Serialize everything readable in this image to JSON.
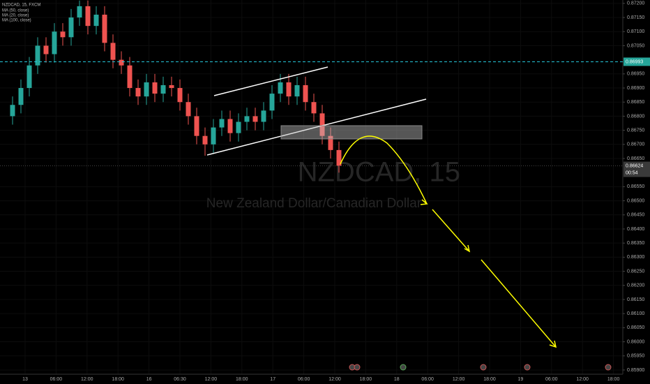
{
  "chart_data": {
    "type": "candlestick",
    "header": "NZDCAD, 15, FXCM",
    "indicators": [
      "MA (50, close)",
      "MA (20, close)",
      "MA (100, close)"
    ],
    "watermark": "NZDCAD, 15",
    "watermark_subtitle": "New Zealand Dollar/Canadian Dollar",
    "up_color": "#26a69a",
    "down_color": "#ef5350",
    "open": [
      0.868,
      0.8684,
      0.869,
      0.8698,
      0.8705,
      0.8702,
      0.871,
      0.8708,
      0.8715,
      0.8719,
      0.8712,
      0.8716,
      0.8706,
      0.87,
      0.8698,
      0.869,
      0.8687,
      0.8692,
      0.8688,
      0.8691,
      0.869,
      0.8685,
      0.868,
      0.8673,
      0.867,
      0.8676,
      0.8679,
      0.8674,
      0.8678,
      0.868,
      0.8678,
      0.8682,
      0.8688,
      0.8692,
      0.8687,
      0.8691,
      0.8685,
      0.8681,
      0.8673,
      0.8668
    ],
    "high": [
      0.8687,
      0.8693,
      0.8701,
      0.8708,
      0.8708,
      0.8713,
      0.8713,
      0.8718,
      0.8721,
      0.8721,
      0.8719,
      0.8719,
      0.8709,
      0.8703,
      0.8701,
      0.8693,
      0.8695,
      0.8695,
      0.8694,
      0.8694,
      0.8693,
      0.8688,
      0.8683,
      0.8676,
      0.8679,
      0.8682,
      0.8682,
      0.8681,
      0.8683,
      0.8683,
      0.8685,
      0.8691,
      0.8695,
      0.8695,
      0.8694,
      0.8694,
      0.8688,
      0.8684,
      0.8676,
      0.8671
    ],
    "low": [
      0.8677,
      0.8681,
      0.8687,
      0.8695,
      0.8699,
      0.8699,
      0.8705,
      0.8705,
      0.8712,
      0.8709,
      0.8709,
      0.8703,
      0.8697,
      0.8695,
      0.8687,
      0.8684,
      0.8684,
      0.8685,
      0.8685,
      0.8687,
      0.8682,
      0.8677,
      0.867,
      0.8666,
      0.8667,
      0.8673,
      0.8671,
      0.8671,
      0.8675,
      0.8675,
      0.8675,
      0.8679,
      0.8685,
      0.8684,
      0.8684,
      0.8682,
      0.8678,
      0.867,
      0.8665,
      0.866
    ],
    "close": [
      0.8684,
      0.869,
      0.8698,
      0.8705,
      0.8702,
      0.871,
      0.8708,
      0.8715,
      0.8719,
      0.8712,
      0.8716,
      0.8706,
      0.87,
      0.8698,
      0.869,
      0.8687,
      0.8692,
      0.8688,
      0.8691,
      0.869,
      0.8685,
      0.868,
      0.8673,
      0.867,
      0.8676,
      0.8679,
      0.8674,
      0.8678,
      0.868,
      0.8678,
      0.8682,
      0.8688,
      0.8692,
      0.8687,
      0.8691,
      0.8685,
      0.8681,
      0.8673,
      0.8668,
      0.86624
    ],
    "last_price": {
      "value": 0.86624,
      "label": "0.86624"
    },
    "countdown": "00:54",
    "hline": {
      "value": 0.86993,
      "label": "0.86993"
    },
    "ylim": [
      0.85885,
      0.87212
    ],
    "yticks": [
      {
        "value": 0.872,
        "label": "0.87200"
      },
      {
        "value": 0.8715,
        "label": "0.87150"
      },
      {
        "value": 0.871,
        "label": "0.87100"
      },
      {
        "value": 0.8705,
        "label": "0.87050"
      },
      {
        "value": 0.8695,
        "label": "0.86950"
      },
      {
        "value": 0.869,
        "label": "0.86900"
      },
      {
        "value": 0.8685,
        "label": "0.86850"
      },
      {
        "value": 0.868,
        "label": "0.86800"
      },
      {
        "value": 0.8675,
        "label": "0.86750"
      },
      {
        "value": 0.867,
        "label": "0.86700"
      },
      {
        "value": 0.8665,
        "label": "0.86650"
      },
      {
        "value": 0.8655,
        "label": "0.86550"
      },
      {
        "value": 0.865,
        "label": "0.86500"
      },
      {
        "value": 0.8645,
        "label": "0.86450"
      },
      {
        "value": 0.864,
        "label": "0.86400"
      },
      {
        "value": 0.8635,
        "label": "0.86350"
      },
      {
        "value": 0.863,
        "label": "0.86300"
      },
      {
        "value": 0.8625,
        "label": "0.86250"
      },
      {
        "value": 0.862,
        "label": "0.86200"
      },
      {
        "value": 0.8615,
        "label": "0.86150"
      },
      {
        "value": 0.861,
        "label": "0.86100"
      },
      {
        "value": 0.8605,
        "label": "0.86050"
      },
      {
        "value": 0.86,
        "label": "0.86000"
      },
      {
        "value": 0.8595,
        "label": "0.85950"
      },
      {
        "value": 0.859,
        "label": "0.85900"
      }
    ],
    "xtick_labels": [
      "13",
      "06:00",
      "12:00",
      "18:00",
      "16",
      "06:30",
      "12:00",
      "18:00",
      "17",
      "06:00",
      "12:00",
      "18:00",
      "18",
      "06:00",
      "12:00",
      "18:00",
      "19",
      "06:00",
      "12:00",
      "18:00"
    ]
  }
}
